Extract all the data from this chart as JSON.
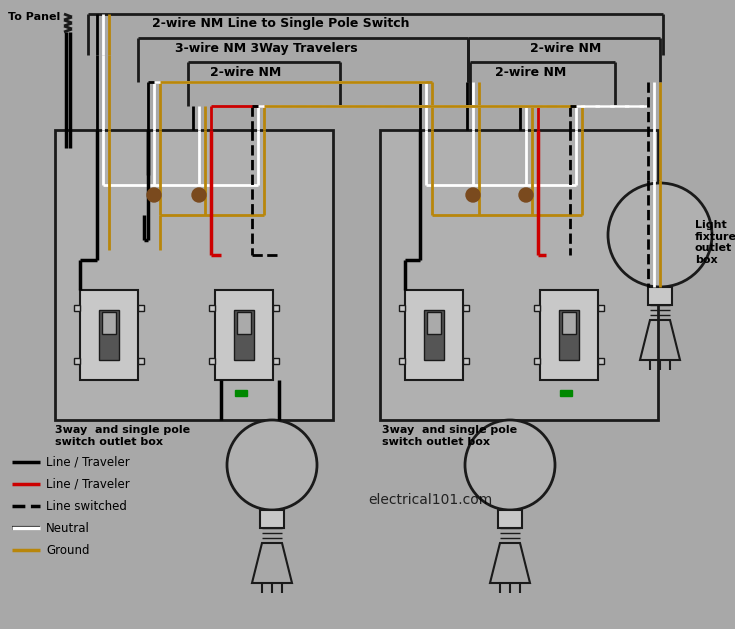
{
  "bg_color": "#a8a8a8",
  "colors": {
    "black": "#000000",
    "red": "#cc0000",
    "white": "#ffffff",
    "gold": "#b8860b",
    "box_fill": "#b0b0b0",
    "box_edge": "#1a1a1a",
    "switch_fill": "#c8c8c8",
    "switch_dark": "#555555",
    "brown": "#7a4a1e",
    "green": "#008800"
  },
  "labels": {
    "to_panel": "To Panel",
    "nm_2wire_line": "2-wire NM Line to Single Pole Switch",
    "nm_3wire": "3-wire NM 3Way Travelers",
    "nm_2wire_left": "2-wire NM",
    "nm_2wire_right_top": "2-wire NM",
    "nm_2wire_right_inner": "2-wire NM",
    "box_label_left": "3way  and single pole\nswitch outlet box",
    "box_label_right": "3way  and single pole\nswitch outlet box",
    "fixture_label": "Light\nfixture\noutlet\nbox",
    "watermark": "electrical101.com"
  },
  "legend": [
    {
      "label": "Line / Traveler",
      "color": "#000000",
      "style": "solid"
    },
    {
      "label": "Line / Traveler",
      "color": "#cc0000",
      "style": "solid"
    },
    {
      "label": "Line switched",
      "color": "#000000",
      "style": "dashed"
    },
    {
      "label": "Neutral",
      "color": "#ffffff",
      "style": "solid"
    },
    {
      "label": "Ground",
      "color": "#b8860b",
      "style": "solid"
    }
  ]
}
